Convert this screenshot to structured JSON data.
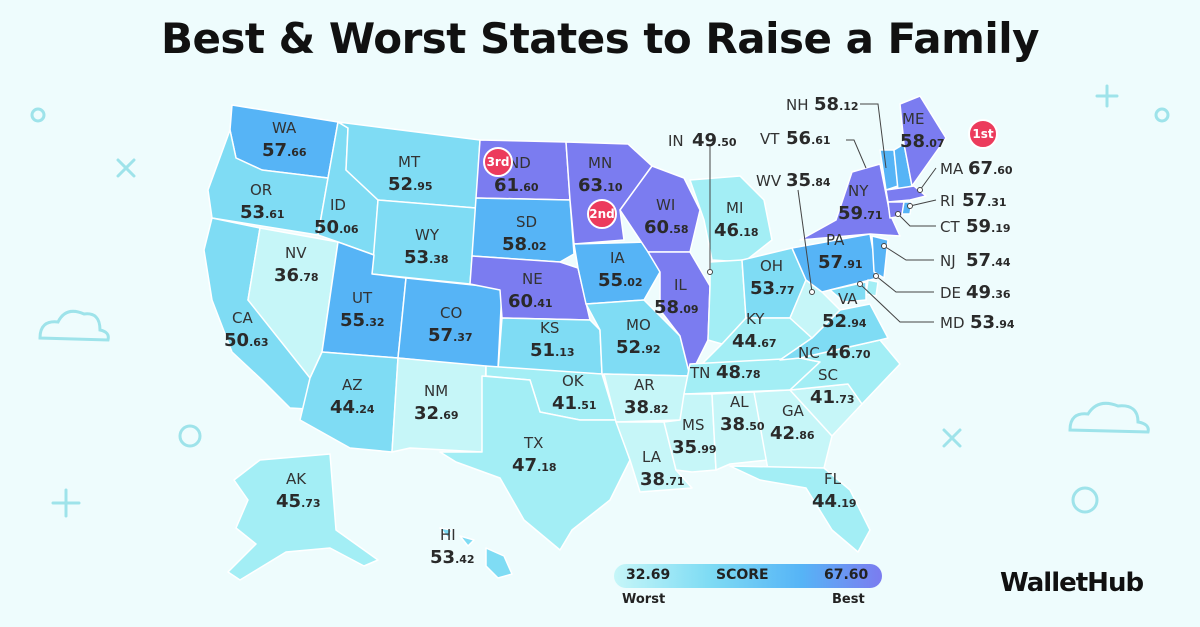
{
  "title": "Best & Worst States to Raise a Family",
  "colors": {
    "worst": "#c6f6f8",
    "low": "#7fdcf4",
    "mid": "#56b4f6",
    "best": "#7b7cf0",
    "badge": "#ec3b5c"
  },
  "legend": {
    "min": "32.69",
    "label": "SCORE",
    "max": "67.60",
    "worst_label": "Worst",
    "best_label": "Best"
  },
  "brand": "WalletHub",
  "badges": {
    "first": "1st",
    "second": "2nd",
    "third": "3rd"
  },
  "states": {
    "WA": {
      "abbr": "WA",
      "int": "57",
      "dec": ".66"
    },
    "OR": {
      "abbr": "OR",
      "int": "53",
      "dec": ".61"
    },
    "CA": {
      "abbr": "CA",
      "int": "50",
      "dec": ".63"
    },
    "NV": {
      "abbr": "NV",
      "int": "36",
      "dec": ".78"
    },
    "ID": {
      "abbr": "ID",
      "int": "50",
      "dec": ".06"
    },
    "MT": {
      "abbr": "MT",
      "int": "52",
      "dec": ".95"
    },
    "WY": {
      "abbr": "WY",
      "int": "53",
      "dec": ".38"
    },
    "UT": {
      "abbr": "UT",
      "int": "55",
      "dec": ".32"
    },
    "AZ": {
      "abbr": "AZ",
      "int": "44",
      "dec": ".24"
    },
    "CO": {
      "abbr": "CO",
      "int": "57",
      "dec": ".37"
    },
    "NM": {
      "abbr": "NM",
      "int": "32",
      "dec": ".69"
    },
    "ND": {
      "abbr": "ND",
      "int": "61",
      "dec": ".60"
    },
    "SD": {
      "abbr": "SD",
      "int": "58",
      "dec": ".02"
    },
    "NE": {
      "abbr": "NE",
      "int": "60",
      "dec": ".41"
    },
    "KS": {
      "abbr": "KS",
      "int": "51",
      "dec": ".13"
    },
    "OK": {
      "abbr": "OK",
      "int": "41",
      "dec": ".51"
    },
    "TX": {
      "abbr": "TX",
      "int": "47",
      "dec": ".18"
    },
    "MN": {
      "abbr": "MN",
      "int": "63",
      "dec": ".10"
    },
    "IA": {
      "abbr": "IA",
      "int": "55",
      "dec": ".02"
    },
    "MO": {
      "abbr": "MO",
      "int": "52",
      "dec": ".92"
    },
    "AR": {
      "abbr": "AR",
      "int": "38",
      "dec": ".82"
    },
    "LA": {
      "abbr": "LA",
      "int": "38",
      "dec": ".71"
    },
    "WI": {
      "abbr": "WI",
      "int": "60",
      "dec": ".58"
    },
    "IL": {
      "abbr": "IL",
      "int": "58",
      "dec": ".09"
    },
    "MI": {
      "abbr": "MI",
      "int": "46",
      "dec": ".18"
    },
    "IN": {
      "abbr": "IN",
      "int": "49",
      "dec": ".50"
    },
    "OH": {
      "abbr": "OH",
      "int": "53",
      "dec": ".77"
    },
    "KY": {
      "abbr": "KY",
      "int": "44",
      "dec": ".67"
    },
    "TN": {
      "abbr": "TN",
      "int": "48",
      "dec": ".78"
    },
    "MS": {
      "abbr": "MS",
      "int": "35",
      "dec": ".99"
    },
    "AL": {
      "abbr": "AL",
      "int": "38",
      "dec": ".50"
    },
    "GA": {
      "abbr": "GA",
      "int": "42",
      "dec": ".86"
    },
    "FL": {
      "abbr": "FL",
      "int": "44",
      "dec": ".19"
    },
    "SC": {
      "abbr": "SC",
      "int": "41",
      "dec": ".73"
    },
    "NC": {
      "abbr": "NC",
      "int": "46",
      "dec": ".70"
    },
    "VA": {
      "abbr": "VA",
      "int": "52",
      "dec": ".94"
    },
    "WV": {
      "abbr": "WV",
      "int": "35",
      "dec": ".84"
    },
    "PA": {
      "abbr": "PA",
      "int": "57",
      "dec": ".91"
    },
    "NY": {
      "abbr": "NY",
      "int": "59",
      "dec": ".71"
    },
    "NH": {
      "abbr": "NH",
      "int": "58",
      "dec": ".12"
    },
    "VT": {
      "abbr": "VT",
      "int": "56",
      "dec": ".61"
    },
    "ME": {
      "abbr": "ME",
      "int": "58",
      "dec": ".07"
    },
    "MA": {
      "abbr": "MA",
      "int": "67",
      "dec": ".60"
    },
    "RI": {
      "abbr": "RI",
      "int": "57",
      "dec": ".31"
    },
    "CT": {
      "abbr": "CT",
      "int": "59",
      "dec": ".19"
    },
    "NJ": {
      "abbr": "NJ",
      "int": "57",
      "dec": ".44"
    },
    "DE": {
      "abbr": "DE",
      "int": "49",
      "dec": ".36"
    },
    "MD": {
      "abbr": "MD",
      "int": "53",
      "dec": ".94"
    },
    "AK": {
      "abbr": "AK",
      "int": "45",
      "dec": ".73"
    },
    "HI": {
      "abbr": "HI",
      "int": "53",
      "dec": ".42"
    }
  }
}
